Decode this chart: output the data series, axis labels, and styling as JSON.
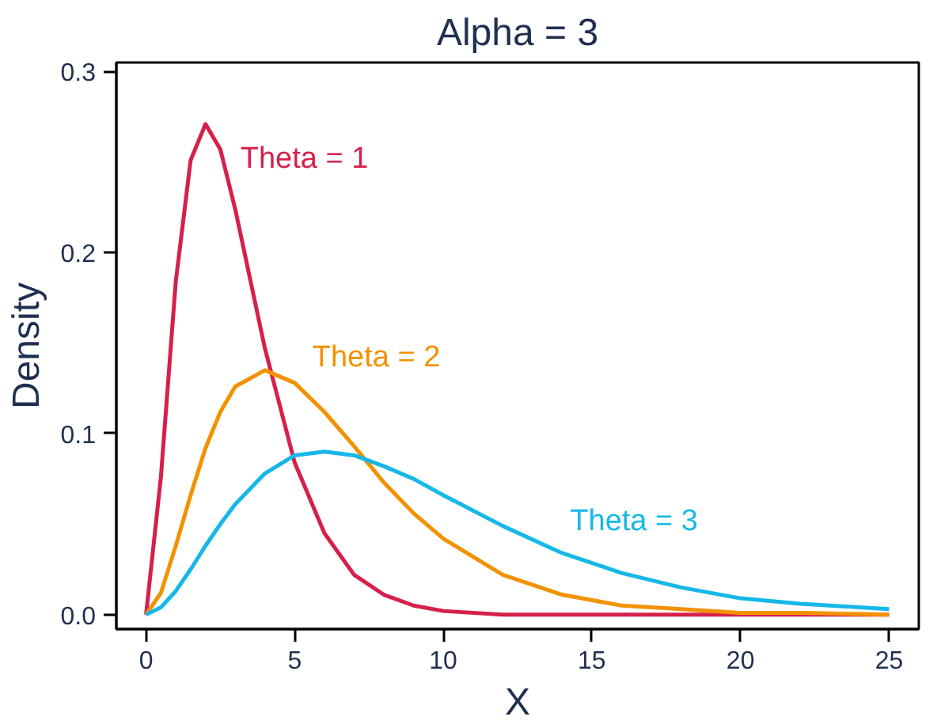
{
  "chart_data": {
    "type": "line",
    "title": "Alpha = 3",
    "xlabel": "X",
    "ylabel": "Density",
    "x": [
      0,
      0.5,
      1,
      1.5,
      2,
      2.5,
      3,
      4,
      5,
      6,
      7,
      8,
      9,
      10,
      12,
      14,
      16,
      18,
      20,
      22,
      25
    ],
    "series": [
      {
        "name": "Theta = 1",
        "color": "#d6204b",
        "values": [
          0,
          0.076,
          0.184,
          0.251,
          0.271,
          0.257,
          0.224,
          0.147,
          0.084,
          0.045,
          0.022,
          0.011,
          0.005,
          0.002,
          0,
          0,
          0,
          0,
          0,
          0,
          0
        ]
      },
      {
        "name": "Theta = 2",
        "color": "#f39200",
        "values": [
          0,
          0.012,
          0.038,
          0.066,
          0.092,
          0.112,
          0.126,
          0.135,
          0.128,
          0.112,
          0.093,
          0.073,
          0.056,
          0.042,
          0.022,
          0.011,
          0.005,
          0.003,
          0.001,
          0.001,
          0
        ]
      },
      {
        "name": "Theta = 3",
        "color": "#16b8e8",
        "values": [
          0,
          0.004,
          0.013,
          0.025,
          0.038,
          0.05,
          0.061,
          0.078,
          0.088,
          0.09,
          0.088,
          0.082,
          0.075,
          0.066,
          0.049,
          0.034,
          0.023,
          0.015,
          0.009,
          0.006,
          0.003
        ]
      }
    ],
    "xlim": [
      -1,
      26
    ],
    "ylim": [
      -0.008,
      0.305
    ],
    "xticks": [
      0,
      5,
      10,
      15,
      20,
      25
    ],
    "yticks": [
      {
        "value": 0,
        "label": "0.0"
      },
      {
        "value": 0.1,
        "label": "0.1"
      },
      {
        "value": 0.2,
        "label": "0.2"
      },
      {
        "value": 0.3,
        "label": "0.3"
      }
    ],
    "grid": false,
    "line_style": "solid",
    "marker": "none"
  }
}
